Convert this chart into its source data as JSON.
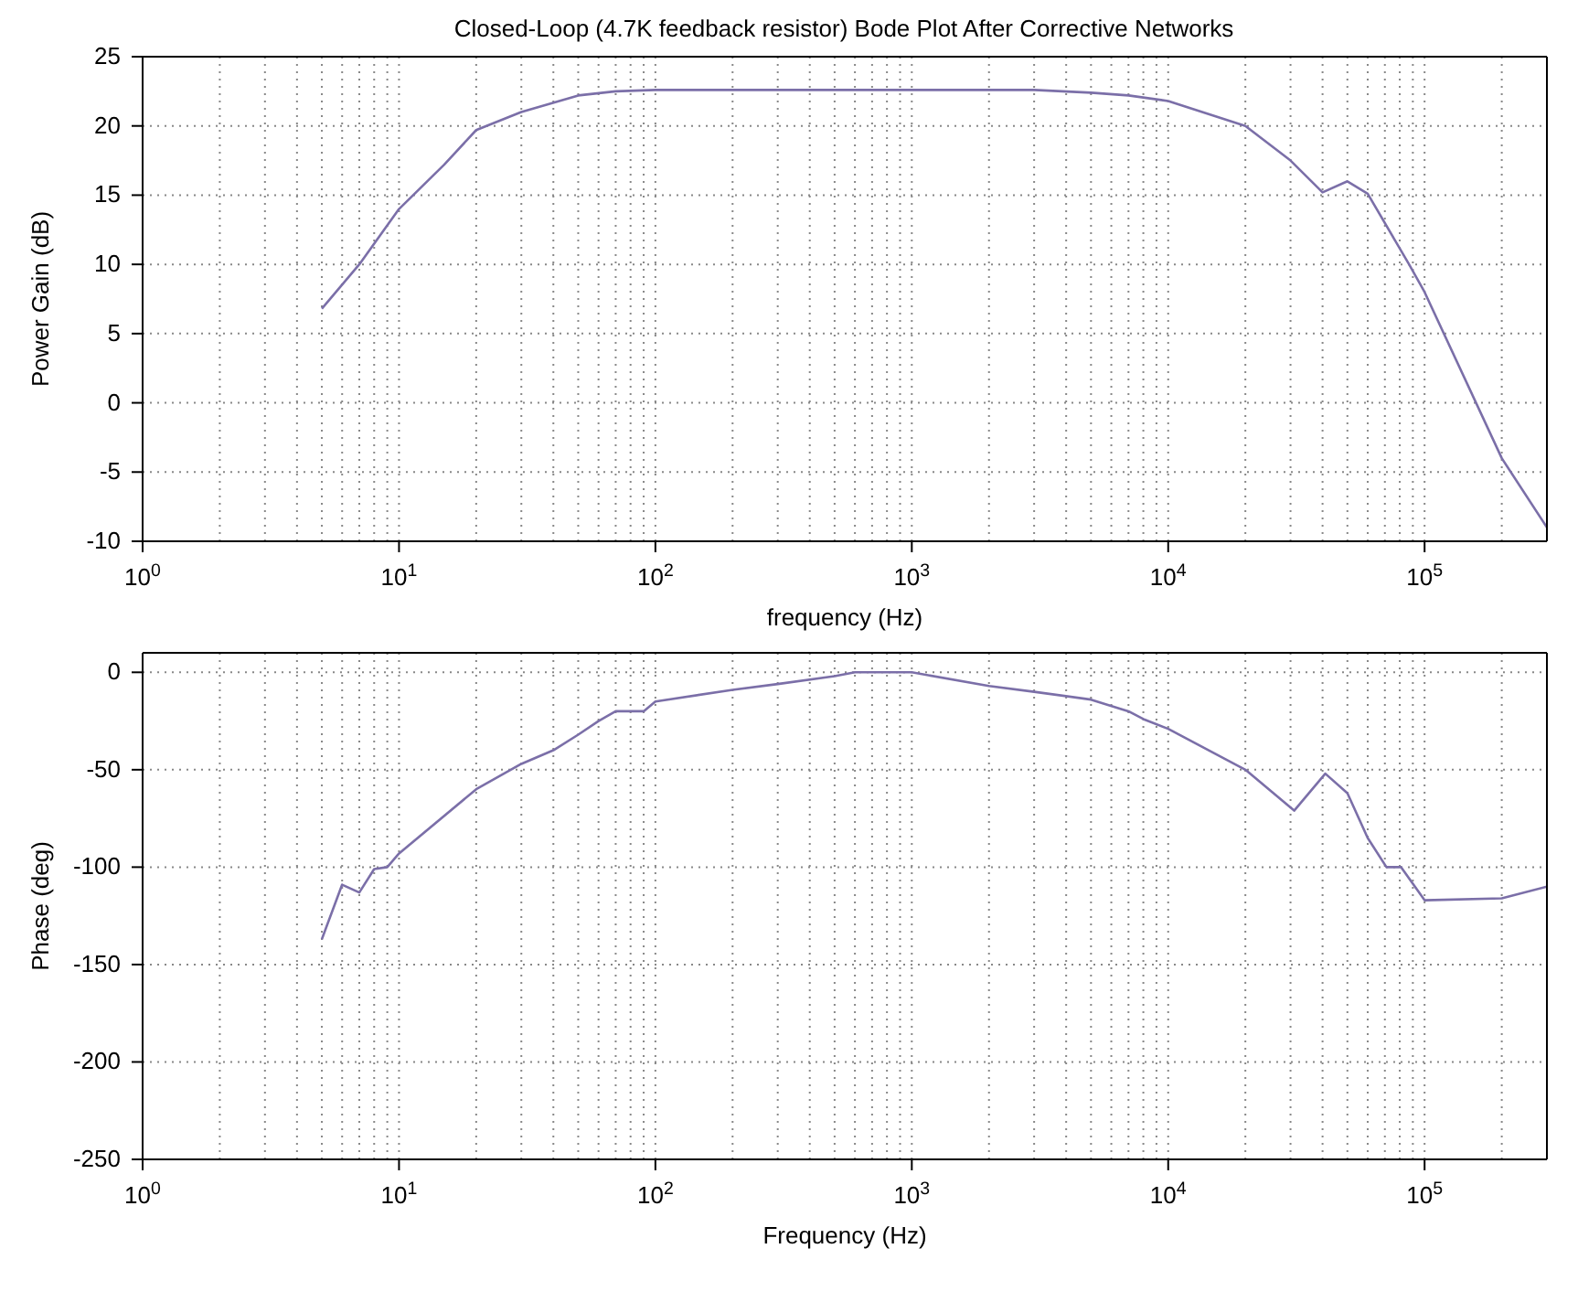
{
  "chart_data": [
    {
      "type": "line",
      "title": "Closed-Loop (4.7K feedback resistor) Bode Plot After Corrective Networks",
      "xlabel": "frequency (Hz)",
      "ylabel": "Power Gain (dB)",
      "log": "x",
      "grid": true,
      "marker": "none",
      "line_style": "solid",
      "xlim": [
        1,
        300000
      ],
      "xticks": [
        {
          "value": 1,
          "label": "10$^{0}$"
        },
        {
          "value": 10,
          "label": "10$^{1}$"
        },
        {
          "value": 100,
          "label": "10$^{2}$"
        },
        {
          "value": 1000,
          "label": "10$^{3}$"
        },
        {
          "value": 10000,
          "label": "10$^{4}$"
        },
        {
          "value": 100000,
          "label": "10$^{5}$"
        }
      ],
      "ylim": [
        -10,
        25
      ],
      "yticks": [
        -10,
        -5,
        0,
        5,
        10,
        15,
        20,
        25
      ],
      "x": [
        5,
        7,
        10,
        15,
        20,
        30,
        50,
        70,
        100,
        1000,
        3000,
        5000,
        7000,
        10000,
        20000,
        30000,
        40000,
        50000,
        60000,
        87000,
        100000,
        200000,
        300000
      ],
      "series": [
        {
          "color": "#7b6fa8",
          "values": [
            6.8,
            10,
            14,
            17.2,
            19.7,
            21,
            22.2,
            22.5,
            22.6,
            22.6,
            22.6,
            22.4,
            22.2,
            21.8,
            20,
            17.5,
            15.2,
            16,
            15.1,
            10,
            8,
            -4,
            -9
          ]
        }
      ]
    },
    {
      "type": "line",
      "xlabel": "Frequency (Hz)",
      "ylabel": "Phase (deg)",
      "log": "x",
      "grid": true,
      "marker": "none",
      "line_style": "solid",
      "xlim": [
        1,
        300000
      ],
      "xticks": [
        {
          "value": 1,
          "label": "10$^{0}$"
        },
        {
          "value": 10,
          "label": "10$^{1}$"
        },
        {
          "value": 100,
          "label": "10$^{2}$"
        },
        {
          "value": 1000,
          "label": "10$^{3}$"
        },
        {
          "value": 10000,
          "label": "10$^{4}$"
        },
        {
          "value": 100000,
          "label": "10$^{5}$"
        }
      ],
      "ylim": [
        -250,
        10
      ],
      "yticks": [
        -250,
        -200,
        -150,
        -100,
        -50,
        0
      ],
      "x": [
        5,
        6,
        7,
        8,
        9,
        10,
        20,
        30,
        40,
        50,
        60,
        70,
        80,
        90,
        100,
        200,
        300,
        500,
        600,
        1000,
        2000,
        3000,
        5000,
        7000,
        8000,
        10000,
        20000,
        31000,
        41000,
        50000,
        60000,
        71000,
        81000,
        100000,
        200000,
        300000
      ],
      "series": [
        {
          "color": "#7b6fa8",
          "values": [
            -137,
            -109,
            -113,
            -101,
            -100,
            -93,
            -60,
            -47,
            -40,
            -32,
            -25,
            -20,
            -20,
            -20,
            -15,
            -9,
            -6,
            -2,
            0,
            0,
            -7,
            -10,
            -14,
            -20,
            -24,
            -29,
            -50,
            -71,
            -52,
            -62,
            -85,
            -100,
            -100,
            -117,
            -116,
            -110
          ]
        }
      ]
    }
  ]
}
